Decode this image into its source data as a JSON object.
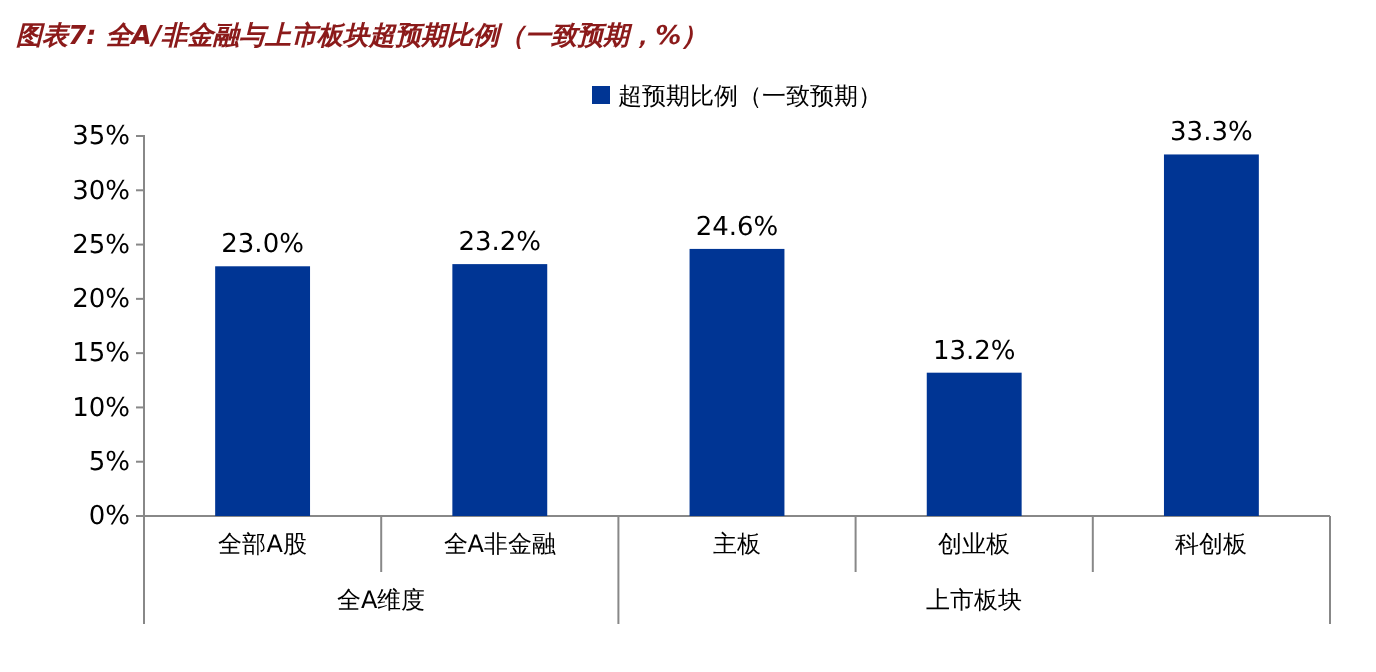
{
  "chart_data": {
    "type": "bar",
    "title": "图表7: 全A/非金融与上市板块超预期比例（一致预期，%）",
    "categories": [
      "全部A股",
      "全A非金融",
      "主板",
      "创业板",
      "科创板"
    ],
    "series": [
      {
        "name": "超预期比例（一致预期）",
        "color": "#003594",
        "values": [
          23.0,
          23.2,
          24.6,
          13.2,
          33.3
        ],
        "value_labels": [
          "23.0%",
          "23.2%",
          "24.6%",
          "13.2%",
          "33.3%"
        ]
      }
    ],
    "ylim": [
      0,
      35
    ],
    "yticks": [
      {
        "value": 0,
        "label": "0%"
      },
      {
        "value": 5,
        "label": "5%"
      },
      {
        "value": 10,
        "label": "10%"
      },
      {
        "value": 15,
        "label": "15%"
      },
      {
        "value": 20,
        "label": "20%"
      },
      {
        "value": 25,
        "label": "25%"
      },
      {
        "value": 30,
        "label": "30%"
      },
      {
        "value": 35,
        "label": "35%"
      }
    ],
    "annotations": [
      "全A维度",
      "上市板块"
    ],
    "grid": false,
    "legend": "top"
  }
}
